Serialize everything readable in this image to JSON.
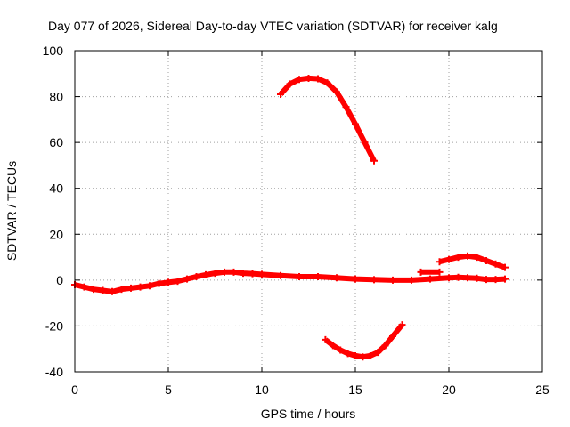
{
  "chart_data": {
    "type": "line",
    "title": "Day 077 of 2026, Sidereal Day-to-day VTEC variation (SDTVAR) for receiver kalg",
    "xlabel": "GPS time / hours",
    "ylabel": "SDTVAR / TECUs",
    "xlim": [
      0,
      25
    ],
    "ylim": [
      -40,
      100
    ],
    "xticks": [
      0,
      5,
      10,
      15,
      20,
      25
    ],
    "yticks": [
      -40,
      -20,
      0,
      20,
      40,
      60,
      80,
      100
    ],
    "grid": true,
    "color": "#ff0000",
    "series": [
      {
        "name": "baseline",
        "x": [
          0,
          0.5,
          1,
          1.5,
          2,
          2.5,
          3,
          3.5,
          4,
          4.5,
          5,
          5.5,
          6,
          6.5,
          7,
          7.5,
          8,
          8.5,
          9,
          9.5,
          10,
          11,
          12,
          13,
          14,
          15,
          16,
          17,
          18,
          19,
          20,
          20.5,
          21,
          21.5,
          22,
          22.5,
          23
        ],
        "y": [
          -2,
          -3,
          -4,
          -4.5,
          -5,
          -4,
          -3.5,
          -3,
          -2.5,
          -1.5,
          -1,
          -0.5,
          0.5,
          1.5,
          2.3,
          3,
          3.5,
          3.5,
          3,
          2.8,
          2.5,
          2,
          1.5,
          1.5,
          1,
          0.5,
          0.2,
          0,
          0,
          0.5,
          1,
          1.2,
          1,
          0.8,
          0.3,
          0.3,
          0.5
        ]
      },
      {
        "name": "upper-arc",
        "x": [
          11,
          11.5,
          12,
          12.5,
          13,
          13.5,
          14,
          14.5,
          15,
          15.5,
          16
        ],
        "y": [
          81,
          85.5,
          87.5,
          88,
          87.8,
          86,
          82,
          75.5,
          68,
          60,
          52
        ]
      },
      {
        "name": "lower-arc",
        "x": [
          13.4,
          13.8,
          14.2,
          14.6,
          15,
          15.4,
          15.8,
          16.2,
          16.6,
          17,
          17.5
        ],
        "y": [
          -26,
          -28.5,
          -30.5,
          -32,
          -33,
          -33.5,
          -33,
          -31.5,
          -28.5,
          -24.5,
          -19.5
        ]
      },
      {
        "name": "right-arc",
        "x": [
          19.5,
          20,
          20.5,
          21,
          21.5,
          22,
          22.5,
          23
        ],
        "y": [
          8,
          9,
          10,
          10.5,
          10,
          8.5,
          7,
          5.5
        ]
      },
      {
        "name": "right-flat",
        "x": [
          18.5,
          19.5
        ],
        "y": [
          3.5,
          3.5
        ]
      }
    ]
  }
}
